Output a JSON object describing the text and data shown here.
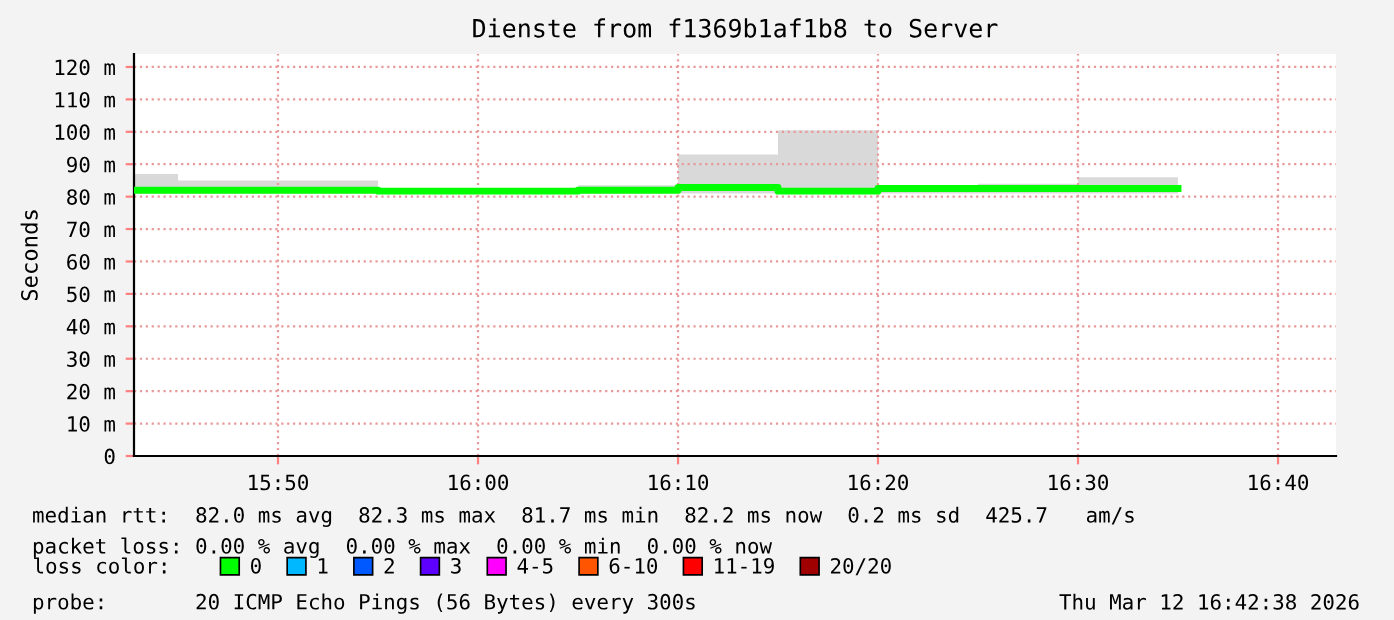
{
  "chart_data": {
    "type": "step",
    "title": "Dienste from f1369b1af1b8 to Server",
    "ylabel": "Seconds",
    "legend_title": "loss color:",
    "legend": "bottom",
    "grid": true,
    "line_style": "solid",
    "marker": "none",
    "xlim": [
      15.7133,
      16.715
    ],
    "ylim": [
      0,
      124
    ],
    "xticks": [
      {
        "value": 15.8333,
        "label": "15:50"
      },
      {
        "value": 16.0,
        "label": "16:00"
      },
      {
        "value": 16.1667,
        "label": "16:10"
      },
      {
        "value": 16.3333,
        "label": "16:20"
      },
      {
        "value": 16.5,
        "label": "16:30"
      },
      {
        "value": 16.6667,
        "label": "16:40"
      }
    ],
    "yticks": [
      0,
      {
        "value": 10,
        "label": "10 m"
      },
      {
        "value": 20,
        "label": "20 m"
      },
      {
        "value": 30,
        "label": "30 m"
      },
      {
        "value": 40,
        "label": "40 m"
      },
      {
        "value": 50,
        "label": "50 m"
      },
      {
        "value": 60,
        "label": "60 m"
      },
      {
        "value": 70,
        "label": "70 m"
      },
      {
        "value": 80,
        "label": "80 m"
      },
      {
        "value": 90,
        "label": "90 m"
      },
      {
        "value": 100,
        "label": "100 m"
      },
      {
        "value": 110,
        "label": "110 m"
      },
      {
        "value": 120,
        "label": "120 m"
      }
    ],
    "x": [
      15.7133,
      15.75,
      15.8333,
      15.9167,
      16.0,
      16.0833,
      16.1667,
      16.25,
      16.3333,
      16.4167,
      16.5,
      16.5833
    ],
    "series": [
      {
        "name": "0",
        "color": "#00ff00",
        "values": [
          82,
          82,
          82,
          81.7,
          81.7,
          82,
          82.8,
          81.7,
          82.5,
          82.5,
          82.5,
          82.5
        ],
        "lower": [
          81,
          81,
          81,
          81,
          81,
          81,
          81,
          81,
          81,
          81,
          81,
          81
        ],
        "upper": [
          87,
          85,
          85,
          82.5,
          82.5,
          83.5,
          93,
          100.5,
          83,
          84,
          86,
          86
        ]
      },
      {
        "name": "1",
        "color": "#00b8ff",
        "values": [
          null,
          null,
          null,
          null,
          null,
          null,
          null,
          null,
          null,
          null,
          null,
          null
        ]
      },
      {
        "name": "2",
        "color": "#0059ff",
        "values": [
          null,
          null,
          null,
          null,
          null,
          null,
          null,
          null,
          null,
          null,
          null,
          null
        ]
      },
      {
        "name": "3",
        "color": "#5e00ff",
        "values": [
          null,
          null,
          null,
          null,
          null,
          null,
          null,
          null,
          null,
          null,
          null,
          null
        ]
      },
      {
        "name": "4-5",
        "color": "#ff00ff",
        "values": [
          null,
          null,
          null,
          null,
          null,
          null,
          null,
          null,
          null,
          null,
          null,
          null
        ]
      },
      {
        "name": "6-10",
        "color": "#ff5500",
        "values": [
          null,
          null,
          null,
          null,
          null,
          null,
          null,
          null,
          null,
          null,
          null,
          null
        ]
      },
      {
        "name": "11-19",
        "color": "#ff0000",
        "values": [
          null,
          null,
          null,
          null,
          null,
          null,
          null,
          null,
          null,
          null,
          null,
          null
        ]
      },
      {
        "name": "20/20",
        "color": "#a10000",
        "values": [
          null,
          null,
          null,
          null,
          null,
          null,
          null,
          null,
          null,
          null,
          null,
          null
        ]
      }
    ],
    "annotations": [
      "median rtt:  82.0 ms avg  82.3 ms max  81.7 ms min  82.2 ms now  0.2 ms sd  425.7   am/s",
      "packet loss: 0.00 % avg  0.00 % max  0.00 % min  0.00 % now",
      "probe:       20 ICMP Echo Pings (56 Bytes) every 300s",
      "Thu Mar 12 16:42:38 2026"
    ]
  }
}
